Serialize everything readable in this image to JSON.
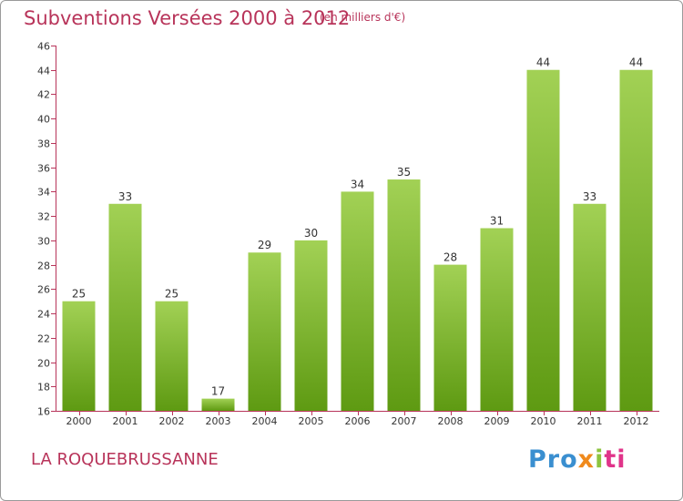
{
  "header": {
    "title": "Subventions Versées 2000 à 2012",
    "unit_note": "(en milliers d'€)"
  },
  "footer": {
    "place": "LA ROQUEBRUSSANNE",
    "brand_parts": [
      "Pro",
      "x",
      "i",
      "ti"
    ]
  },
  "colors": {
    "bar_light": "#a2d155",
    "bar_dark": "#5e9a12",
    "axis": "#b8345a",
    "title": "#b8345a",
    "brand_blue": "#3a8fd0",
    "brand_orange": "#f08a1c",
    "brand_green": "#8cc43f",
    "brand_pink": "#e0348a"
  },
  "chart_data": {
    "type": "bar",
    "categories": [
      "2000",
      "2001",
      "2002",
      "2003",
      "2004",
      "2005",
      "2006",
      "2007",
      "2008",
      "2009",
      "2010",
      "2011",
      "2012"
    ],
    "values": [
      25,
      33,
      25,
      17,
      29,
      30,
      34,
      35,
      28,
      31,
      44,
      33,
      44
    ],
    "ylim": [
      16,
      46
    ],
    "yticks": [
      16,
      18,
      20,
      22,
      24,
      26,
      28,
      30,
      32,
      34,
      36,
      38,
      40,
      42,
      44,
      46
    ],
    "grid": false,
    "data_labels": true
  }
}
